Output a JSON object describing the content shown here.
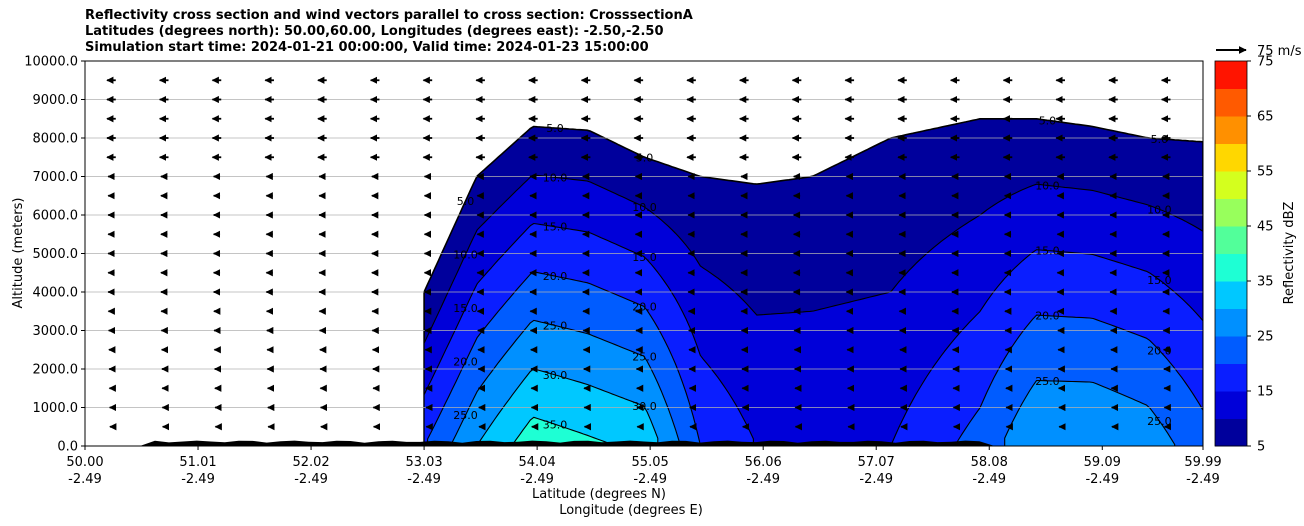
{
  "chart_data": {
    "type": "heatmap",
    "title": [
      "Reflectivity cross section and wind vectors parallel to cross section: CrosssectionA",
      "Latitudes (degrees north): 50.00,60.00, Longitudes (degrees east): -2.50,-2.50",
      "Simulation start time: 2024-01-21 00:00:00, Valid time: 2024-01-23 15:00:00"
    ],
    "ylabel": "Altitude (meters)",
    "xlabel": "Latitude (degrees N)",
    "xlabel2": "Longitude (degrees E)",
    "ylim": [
      0,
      10000
    ],
    "y_ticks": [
      "0.0",
      "1000.0",
      "2000.0",
      "3000.0",
      "4000.0",
      "5000.0",
      "6000.0",
      "7000.0",
      "8000.0",
      "9000.0",
      "10000.0"
    ],
    "x_ticks_lat": [
      "50.00",
      "51.01",
      "52.02",
      "53.03",
      "54.04",
      "55.05",
      "56.06",
      "57.07",
      "58.08",
      "59.09",
      "59.99"
    ],
    "x_ticks_lon": [
      "-2.49",
      "-2.49",
      "-2.49",
      "-2.49",
      "-2.49",
      "-2.49",
      "-2.49",
      "-2.49",
      "-2.49",
      "-2.49",
      "-2.49"
    ],
    "grid": "horizontal",
    "colorbar": {
      "label": "Reflectivity dBZ",
      "ticks": [
        "5",
        "15",
        "25",
        "35",
        "45",
        "55",
        "65",
        "75"
      ],
      "levels": [
        5,
        10,
        15,
        20,
        25,
        30,
        35,
        40,
        45,
        50,
        55,
        60,
        65,
        70,
        75
      ],
      "colors": [
        "#00009c",
        "#0000d9",
        "#0a1eff",
        "#005cff",
        "#0090ff",
        "#00c8ff",
        "#1effd4",
        "#52ff9a",
        "#98ff5c",
        "#d4ff1e",
        "#ffd700",
        "#ff9000",
        "#ff5a00",
        "#ff1400",
        "#a80000"
      ]
    },
    "quiver_key": "75 m/s",
    "contour_labels": [
      "5.0",
      "10.0",
      "15.0",
      "20.0",
      "25.0",
      "30.0",
      "35.0",
      "40.0"
    ],
    "profiles": [
      {
        "lat": 53.03,
        "top": 4000,
        "max": 20
      },
      {
        "lat": 53.5,
        "top": 7000,
        "max": 30
      },
      {
        "lat": 54.0,
        "top": 8300,
        "max": 38
      },
      {
        "lat": 54.5,
        "top": 8200,
        "max": 36
      },
      {
        "lat": 55.0,
        "top": 7500,
        "max": 34
      },
      {
        "lat": 55.5,
        "top": 7000,
        "max": 20
      },
      {
        "lat": 56.0,
        "top": 6800,
        "max": 15
      },
      {
        "lat": 56.5,
        "top": 7000,
        "max": 15
      },
      {
        "lat": 57.2,
        "top": 8000,
        "max": 15
      },
      {
        "lat": 58.0,
        "top": 8500,
        "max": 22
      },
      {
        "lat": 58.5,
        "top": 8500,
        "max": 30
      },
      {
        "lat": 59.0,
        "top": 8300,
        "max": 30
      },
      {
        "lat": 59.5,
        "top": 8000,
        "max": 28
      },
      {
        "lat": 59.99,
        "top": 7900,
        "max": 22
      }
    ],
    "wind": {
      "u_top": -22,
      "u_mid": -16,
      "u_low": -6,
      "unit": "m/s"
    }
  }
}
